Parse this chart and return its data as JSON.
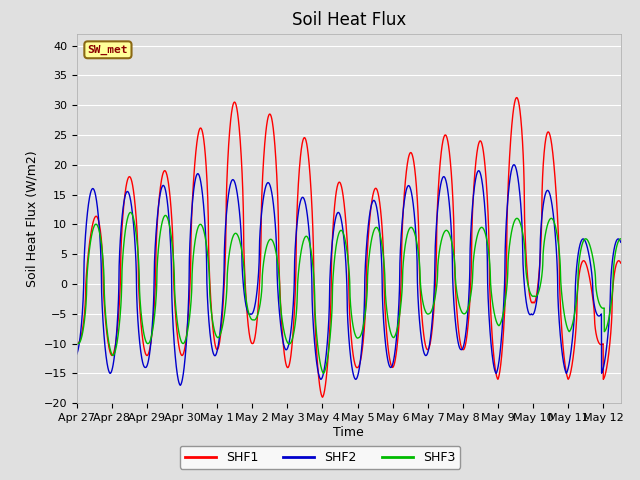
{
  "title": "Soil Heat Flux",
  "xlabel": "Time",
  "ylabel": "Soil Heat Flux (W/m2)",
  "ylim": [
    -20,
    42
  ],
  "yticks": [
    -20,
    -15,
    -10,
    -5,
    0,
    5,
    10,
    15,
    20,
    25,
    30,
    35,
    40
  ],
  "fig_bg_color": "#e0e0e0",
  "plot_bg_color": "#e0e0e0",
  "grid_color": "#ffffff",
  "line_colors": [
    "#ff0000",
    "#0000cd",
    "#00bb00"
  ],
  "line_labels": [
    "SHF1",
    "SHF2",
    "SHF3"
  ],
  "station_label": "SW_met",
  "xtick_labels": [
    "Apr 27",
    "Apr 28",
    "Apr 29",
    "Apr 30",
    "May 1",
    "May 2",
    "May 3",
    "May 4",
    "May 5",
    "May 6",
    "May 7",
    "May 8",
    "May 9",
    "May 10",
    "May 11",
    "May 12"
  ],
  "title_fontsize": 12,
  "label_fontsize": 9,
  "tick_fontsize": 8
}
